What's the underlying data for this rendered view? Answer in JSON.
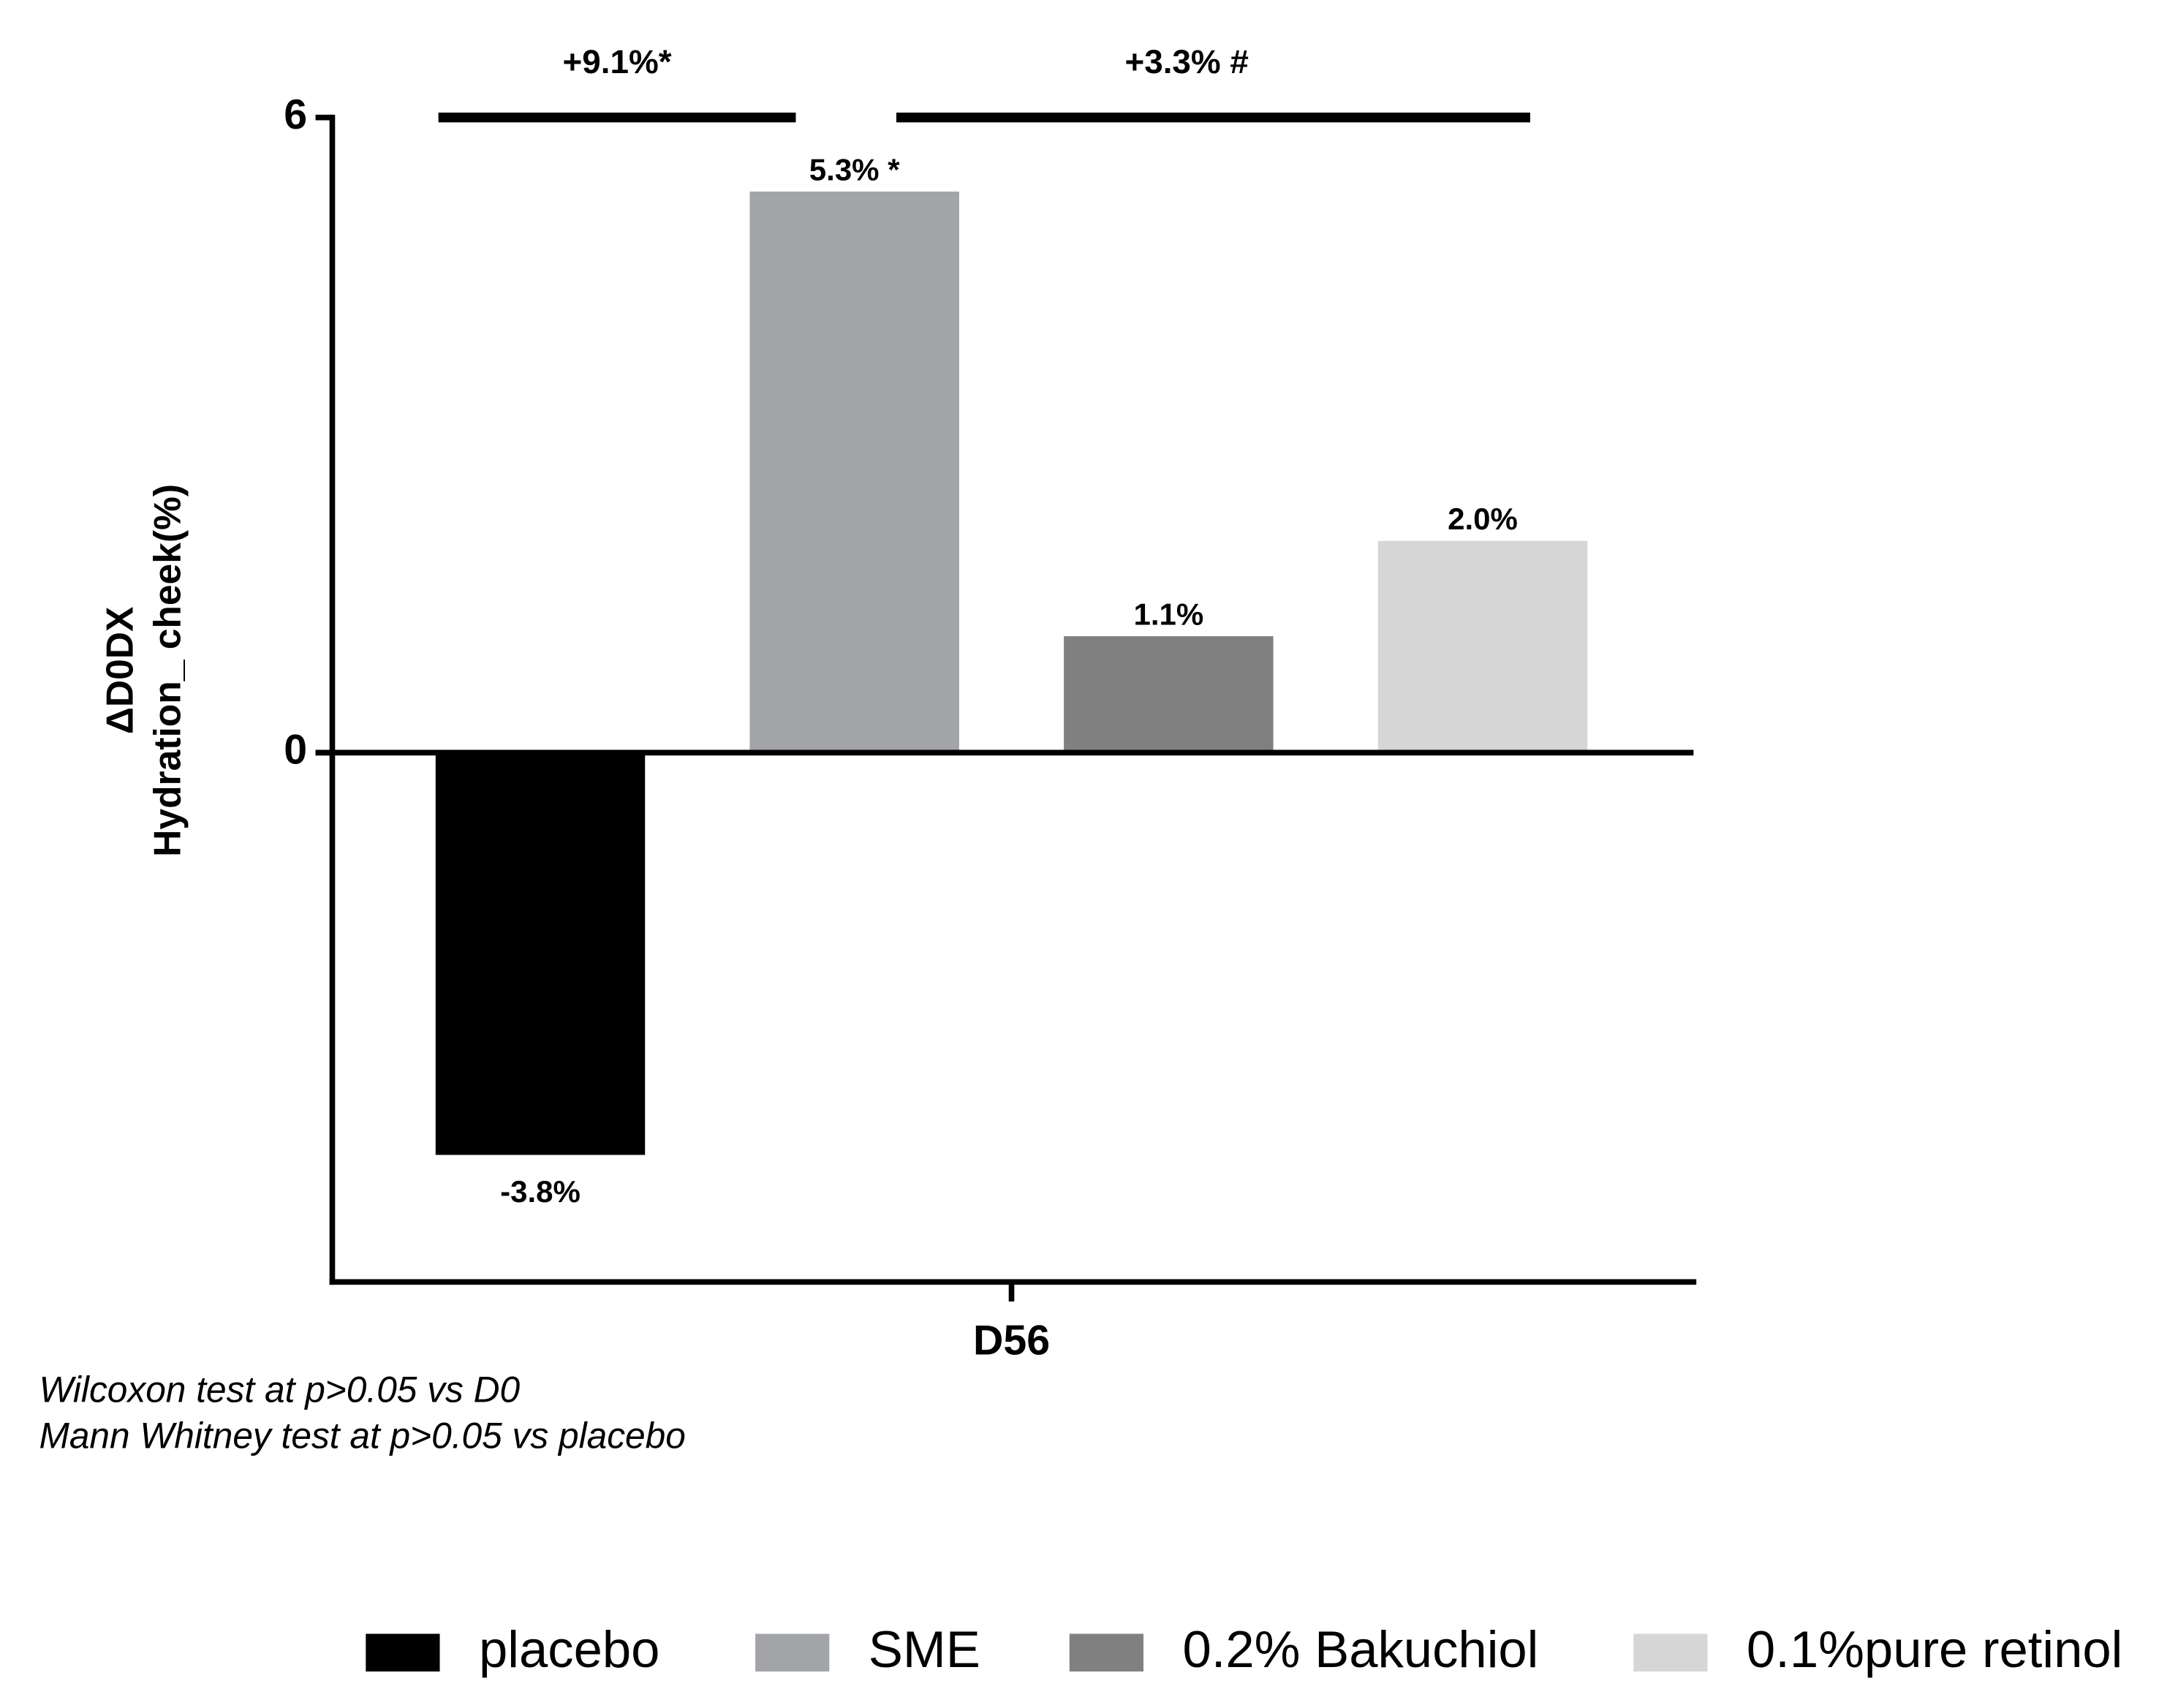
{
  "chart_data": {
    "type": "bar",
    "ylabel": [
      "ΔD0DX",
      "Hydration_ cheek(%)"
    ],
    "categories": [
      "D56"
    ],
    "series": [
      {
        "name": "placebo",
        "color": "#000000",
        "values": [
          -3.8
        ],
        "value_labels": [
          "-3.8%"
        ]
      },
      {
        "name": "SME",
        "color": "#a3a4a8",
        "values": [
          5.3
        ],
        "value_labels": [
          "5.3% *"
        ]
      },
      {
        "name": "0.2% Bakuchiol",
        "color": "#808080",
        "values": [
          1.1
        ],
        "value_labels": [
          "1.1%"
        ]
      },
      {
        "name": "0.1%pure retinol",
        "color": "#d6d6d6",
        "values": [
          2.0
        ],
        "value_labels": [
          "2.0%"
        ]
      }
    ],
    "ylim": [
      -5,
      6
    ],
    "yticks": [
      0,
      6
    ],
    "annotations": [
      "+9.1%*",
      "+3.3% #"
    ],
    "notes": [
      "Wilcoxon test at p>0.05 vs D0",
      "Mann Whitney test at p>0.05 vs placebo"
    ],
    "legend": "bottom"
  }
}
